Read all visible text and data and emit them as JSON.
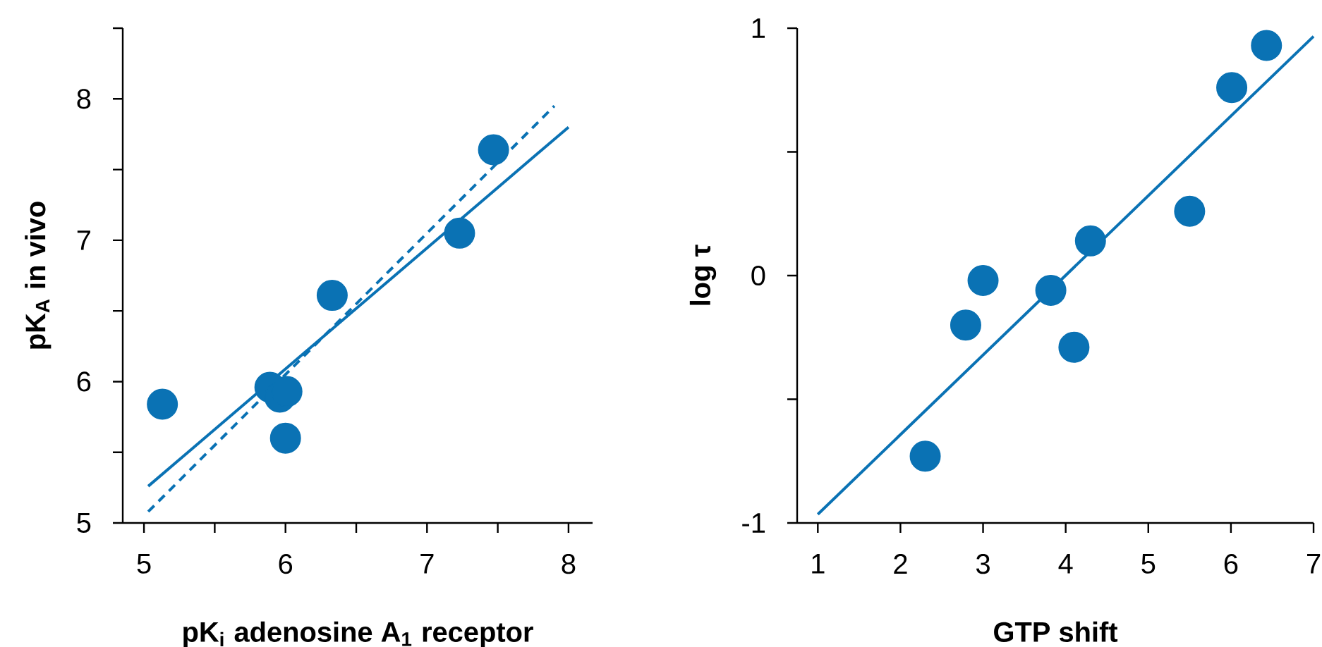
{
  "chart_data": [
    {
      "type": "scatter",
      "xlabel": "pK$_{i}$ adenosine A$_{1}$ receptor",
      "ylabel": "pK$_{A}$ in vivo",
      "xlim": [
        4.85,
        8.17
      ],
      "ylim": [
        5,
        8.5
      ],
      "xticks": [
        5,
        {
          "value": 5.5,
          "label": null
        },
        6,
        {
          "value": 6.5,
          "label": null
        },
        7,
        {
          "value": 7.5,
          "label": null
        },
        8
      ],
      "yticks": [
        5,
        {
          "value": 5.5,
          "label": null
        },
        6,
        {
          "value": 6.5,
          "label": null
        },
        7,
        {
          "value": 7.5,
          "label": null
        },
        8,
        {
          "value": 8.5,
          "label": null
        }
      ],
      "series": [
        {
          "marker": "circle",
          "color": "#0a72b4",
          "x": [
            5.13,
            5.89,
            5.96,
            6.01,
            6.0,
            6.33,
            7.23,
            7.47
          ],
          "values": [
            5.84,
            5.96,
            5.89,
            5.93,
            5.6,
            6.61,
            7.05,
            7.64
          ]
        },
        {
          "type": "line",
          "line_style": "solid",
          "marker": "none",
          "color": "#0a72b4",
          "x": [
            5.03,
            8.0
          ],
          "values": [
            5.26,
            7.8
          ]
        },
        {
          "type": "line",
          "line_style": "dashed",
          "marker": "none",
          "color": "#0a72b4",
          "x": [
            5.03,
            7.9
          ],
          "values": [
            5.08,
            7.95
          ]
        }
      ]
    },
    {
      "type": "scatter",
      "xlabel": "GTP shift",
      "ylabel": "log τ",
      "xlim": [
        0.75,
        7
      ],
      "ylim": [
        -1,
        1
      ],
      "xticks": [
        1,
        2,
        3,
        4,
        5,
        6,
        7
      ],
      "yticks": [
        -1,
        {
          "value": -0.5,
          "label": null
        },
        0,
        {
          "value": 0.5,
          "label": null
        },
        1
      ],
      "series": [
        {
          "marker": "circle",
          "color": "#0a72b4",
          "x": [
            2.3,
            2.79,
            3.0,
            3.82,
            4.1,
            4.3,
            5.5,
            6.01,
            6.43
          ],
          "values": [
            -0.73,
            -0.2,
            -0.02,
            -0.06,
            -0.29,
            0.14,
            0.26,
            0.76,
            0.93
          ]
        },
        {
          "type": "line",
          "line_style": "solid",
          "marker": "none",
          "color": "#0a72b4",
          "x": [
            1.0,
            7.0
          ],
          "values": [
            -0.965,
            0.967
          ]
        }
      ]
    }
  ]
}
